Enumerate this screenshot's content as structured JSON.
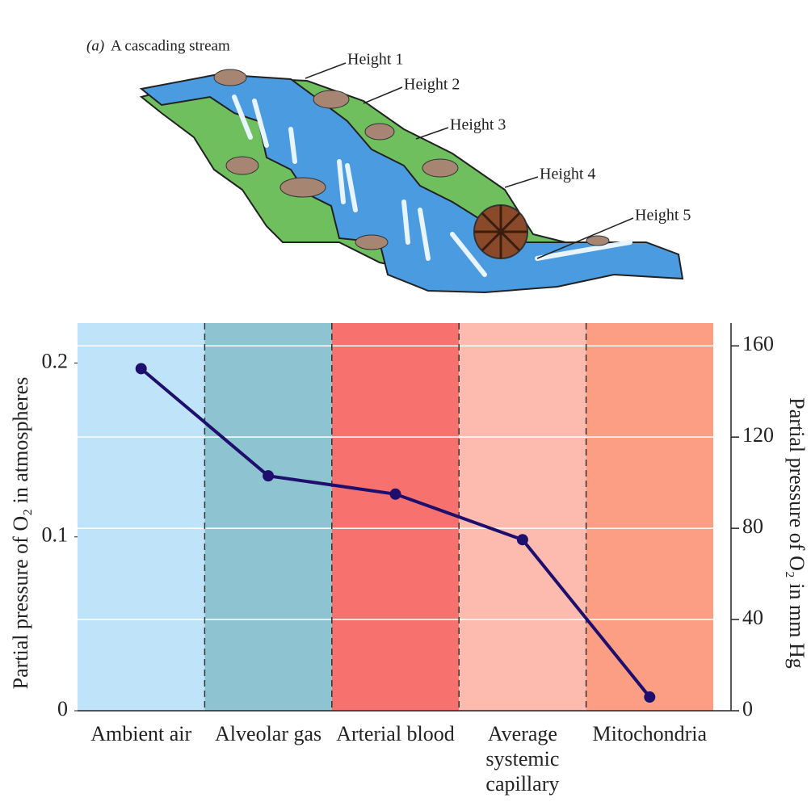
{
  "illustration": {
    "panel_label": "(a)",
    "caption": "A cascading stream",
    "labels": [
      "Height 1",
      "Height 2",
      "Height 3",
      "Height 4",
      "Height 5"
    ]
  },
  "chart_data": {
    "type": "line",
    "categories": [
      "Ambient air",
      "Alveolar gas",
      "Arterial blood",
      "Average systemic capillary",
      "Mitochondria"
    ],
    "band_colors": [
      "#bfe3f8",
      "#8ec3d1",
      "#f7726f",
      "#fdbbb0",
      "#fc9e84"
    ],
    "series": [
      {
        "color": "#1e0f6e",
        "axis": "y2",
        "values": [
          150,
          103,
          95,
          75,
          6
        ]
      }
    ],
    "y_label": "Partial pressure of O₂ in atmospheres",
    "y2_label": "Partial pressure of O₂ in mm Hg",
    "ylim": [
      0,
      0.223
    ],
    "yticks": [
      0,
      0.1,
      0.2
    ],
    "y2lim": [
      0,
      170
    ],
    "y2ticks": [
      0,
      40,
      80,
      120,
      160
    ],
    "grid": true
  }
}
